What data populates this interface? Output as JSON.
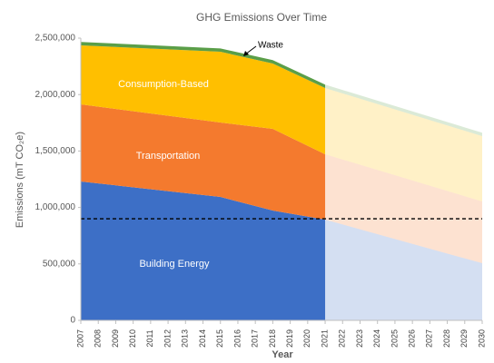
{
  "chart_data": {
    "type": "stacked-area",
    "title": "GHG Emissions Over Time",
    "x_label": "Year",
    "y_label": "Emissions (mT CO₂e)",
    "x": [
      2007,
      2015,
      2018,
      2021,
      2030
    ],
    "forecast_start": 2021,
    "series": [
      {
        "name": "Building Energy",
        "color": "#3d6fc6",
        "values": [
          1230000,
          1093000,
          973000,
          892000,
          506000
        ]
      },
      {
        "name": "Transportation",
        "color": "#f47a2e",
        "values": [
          683000,
          659000,
          723000,
          579000,
          547000
        ]
      },
      {
        "name": "Consumption-Based",
        "color": "#ffbf00",
        "values": [
          523000,
          627000,
          579000,
          587000,
          579000
        ]
      },
      {
        "name": "Waste",
        "color": "#5a9e48",
        "values": [
          30000,
          30000,
          30000,
          30000,
          30000
        ]
      }
    ],
    "reference_line": {
      "value": 900000
    },
    "xlim": [
      2007,
      2030
    ],
    "xticks": [
      2007,
      2008,
      2009,
      2010,
      2011,
      2012,
      2013,
      2014,
      2015,
      2016,
      2017,
      2018,
      2019,
      2020,
      2021,
      2022,
      2023,
      2024,
      2025,
      2026,
      2027,
      2028,
      2029,
      2030
    ],
    "ylim": [
      0,
      2500000
    ],
    "yticks": [
      0,
      {
        "value": 500000,
        "label": "500,000"
      },
      {
        "value": 1000000,
        "label": "1,000,000"
      },
      {
        "value": 1500000,
        "label": "1,500,000"
      },
      {
        "value": 2000000,
        "label": "2,000,000"
      },
      {
        "value": 2500000,
        "label": "2,500,000"
      }
    ]
  }
}
